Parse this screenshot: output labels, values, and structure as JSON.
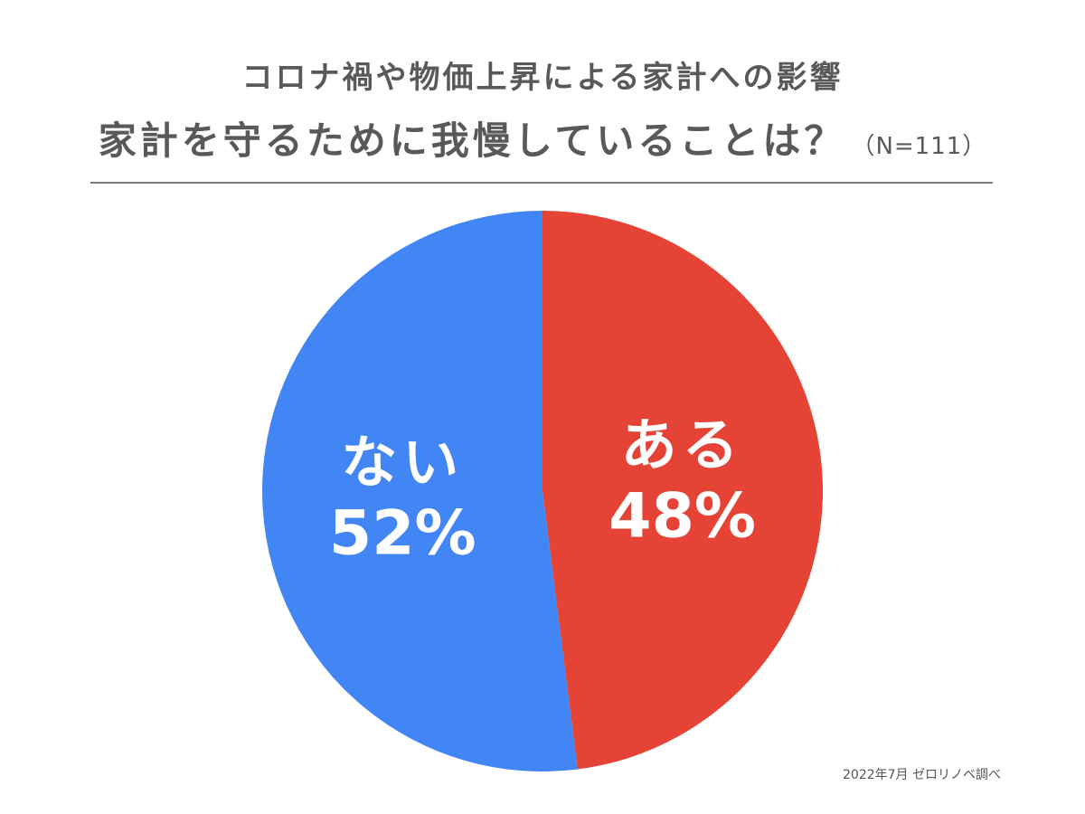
{
  "title": {
    "line1": "コロナ禍や物価上昇による家計への影響",
    "line2": "家計を守るために我慢していることは？",
    "sample": "（N=111）"
  },
  "chart_data": {
    "type": "pie",
    "slices": [
      {
        "label": "ある",
        "value": 48,
        "value_label": "48%",
        "color": "#e54335"
      },
      {
        "label": "ない",
        "value": 52,
        "value_label": "52%",
        "color": "#4285f4"
      }
    ],
    "start": "top",
    "direction": "clockwise"
  },
  "source": "2022年7月 ゼロリノベ調べ"
}
